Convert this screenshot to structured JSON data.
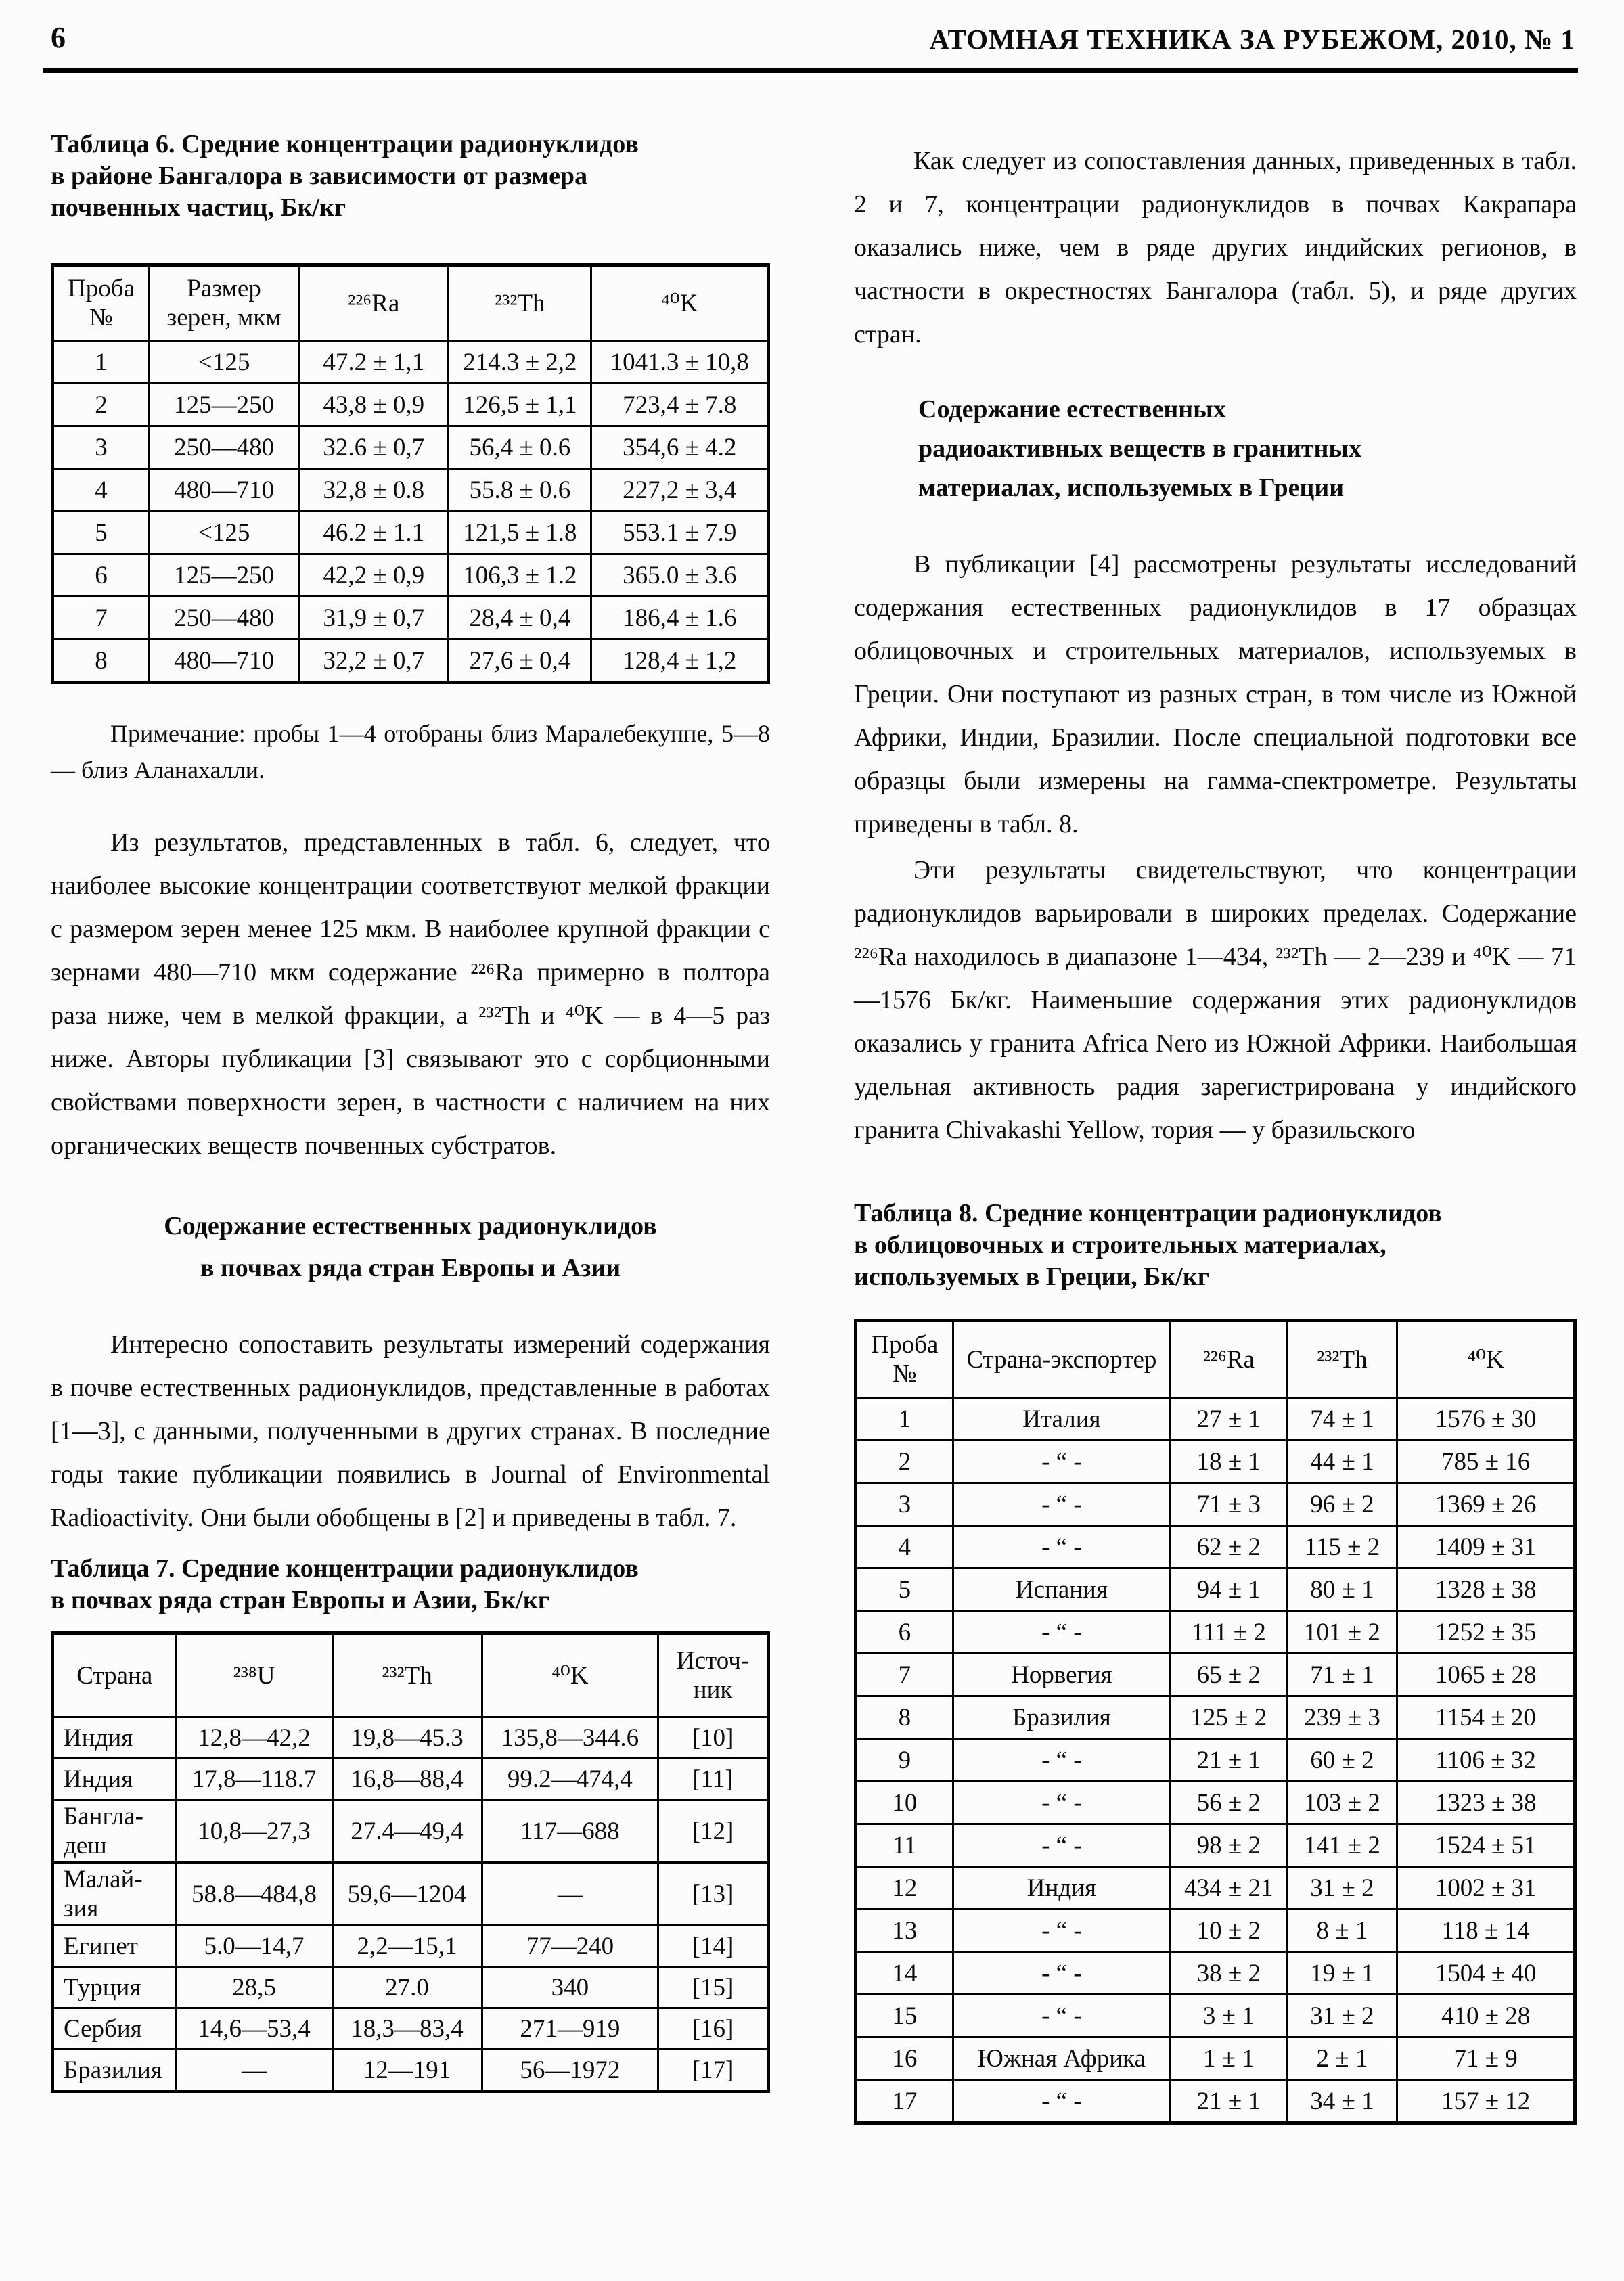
{
  "header": {
    "page_number": "6",
    "journal": "АТОМНАЯ ТЕХНИКА ЗА РУБЕЖОМ, 2010, № 1"
  },
  "left": {
    "table6_title": "Таблица 6. Средние концентрации радионуклидов\nв районе Бангалора в зависимости от размера\nпочвенных частиц, Бк/кг",
    "table6": {
      "headers": [
        "Проба\n№",
        "Размер\nзерен, мкм",
        "²²⁶Ra",
        "²³²Th",
        "⁴⁰K"
      ],
      "rows": [
        [
          "1",
          "<125",
          "47.2 ± 1,1",
          "214.3 ± 2,2",
          "1041.3 ± 10,8"
        ],
        [
          "2",
          "125—250",
          "43,8 ± 0,9",
          "126,5 ± 1,1",
          "723,4 ± 7.8"
        ],
        [
          "3",
          "250—480",
          "32.6 ± 0,7",
          "56,4 ± 0.6",
          "354,6 ± 4.2"
        ],
        [
          "4",
          "480—710",
          "32,8 ± 0.8",
          "55.8 ± 0.6",
          "227,2 ± 3,4"
        ],
        [
          "5",
          "<125",
          "46.2 ± 1.1",
          "121,5 ± 1.8",
          "553.1 ± 7.9"
        ],
        [
          "6",
          "125—250",
          "42,2 ± 0,9",
          "106,3 ± 1.2",
          "365.0 ± 3.6"
        ],
        [
          "7",
          "250—480",
          "31,9 ± 0,7",
          "28,4 ± 0,4",
          "186,4 ± 1.6"
        ],
        [
          "8",
          "480—710",
          "32,2 ± 0,7",
          "27,6 ± 0,4",
          "128,4 ± 1,2"
        ]
      ]
    },
    "table6_note": "Примечание: пробы 1—4 отобраны близ Маралебекуппе, 5—8 — близ Аланахалли.",
    "para1": "Из результатов, представленных в табл. 6, следует, что наиболее высокие концентрации соответствуют мелкой фракции с размером зерен менее 125 мкм. В наиболее крупной фракции с зернами 480—710 мкм содержание ²²⁶Ra примерно в полтора раза ниже, чем в мелкой фракции, а ²³²Th и ⁴⁰K — в 4—5 раз ниже. Авторы публикации [3] связывают это с сорбционными свойствами поверхности зерен, в частности с наличием на них органических веществ почвенных субстратов.",
    "heading1": "Содержание естественных радионуклидов\nв почвах ряда стран Европы и Азии",
    "para2": "Интересно сопоставить результаты измерений содержания в почве естественных радионуклидов, представленные в работах [1—3], с данными, полученными в других странах. В последние годы такие публикации появились в Journal of Environmental Radioactivity. Они были обобщены в [2] и приведены в табл. 7.",
    "table7_title": "Таблица 7. Средние концентрации радионуклидов\nв почвах ряда стран Европы и Азии, Бк/кг",
    "table7": {
      "headers": [
        "Страна",
        "²³⁸U",
        "²³²Th",
        "⁴⁰K",
        "Источ-\nник"
      ],
      "rows": [
        [
          "Индия",
          "12,8—42,2",
          "19,8—45.3",
          "135,8—344.6",
          "[10]"
        ],
        [
          "Индия",
          "17,8—118.7",
          "16,8—88,4",
          "99.2—474,4",
          "[11]"
        ],
        [
          "Бангла-\nдеш",
          "10,8—27,3",
          "27.4—49,4",
          "117—688",
          "[12]"
        ],
        [
          "Малай-\nзия",
          "58.8—484,8",
          "59,6—1204",
          "—",
          "[13]"
        ],
        [
          "Египет",
          "5.0—14,7",
          "2,2—15,1",
          "77—240",
          "[14]"
        ],
        [
          "Турция",
          "28,5",
          "27.0",
          "340",
          "[15]"
        ],
        [
          "Сербия",
          "14,6—53,4",
          "18,3—83,4",
          "271—919",
          "[16]"
        ],
        [
          "Бразилия",
          "—",
          "12—191",
          "56—1972",
          "[17]"
        ]
      ]
    }
  },
  "right": {
    "para1": "Как следует из сопоставления данных, приведенных в табл. 2 и 7, концентрации радионуклидов в почвах Какрапара оказались ниже, чем в ряде других индийских регионов, в частности в окрестностях Бангалора (табл. 5), и ряде других стран.",
    "heading1": "Содержание естественных\nрадиоактивных веществ в гранитных\nматериалах, используемых в Греции",
    "para2": "В публикации [4] рассмотрены результаты исследований содержания естественных радионуклидов в 17 образцах облицовочных и строительных материалов, используемых в Греции. Они поступают из разных стран, в том числе из Южной Африки, Индии, Бразилии. После специальной подготовки все образцы были измерены на гамма-спектрометре. Результаты приведены в табл. 8.",
    "para3": "Эти результаты свидетельствуют, что концентрации радионуклидов варьировали в широких пределах. Содержание ²²⁶Ra находилось в диапазоне 1—434, ²³²Th — 2—239 и ⁴⁰K — 71—1576 Бк/кг. Наименьшие содержания этих радионуклидов оказались у гранита Africa Nero из Южной Африки. Наибольшая удельная активность радия зарегистрирована у индийского гранита Chivakashi Yellow, тория — у бразильского",
    "table8_title": "Таблица 8. Средние концентрации радионуклидов\nв облицовочных и строительных материалах,\nиспользуемых в Греции, Бк/кг",
    "table8": {
      "headers": [
        "Проба\n№",
        "Страна-экспортер",
        "²²⁶Ra",
        "²³²Th",
        "⁴⁰K"
      ],
      "rows": [
        [
          "1",
          "Италия",
          "27 ± 1",
          "74 ± 1",
          "1576 ± 30"
        ],
        [
          "2",
          "- “ -",
          "18 ± 1",
          "44 ± 1",
          "785 ± 16"
        ],
        [
          "3",
          "- “ -",
          "71 ± 3",
          "96 ± 2",
          "1369 ± 26"
        ],
        [
          "4",
          "- “ -",
          "62 ± 2",
          "115 ± 2",
          "1409 ± 31"
        ],
        [
          "5",
          "Испания",
          "94 ± 1",
          "80 ± 1",
          "1328 ± 38"
        ],
        [
          "6",
          "- “ -",
          "111 ± 2",
          "101 ± 2",
          "1252 ± 35"
        ],
        [
          "7",
          "Норвегия",
          "65 ± 2",
          "71 ± 1",
          "1065 ± 28"
        ],
        [
          "8",
          "Бразилия",
          "125 ± 2",
          "239 ± 3",
          "1154 ± 20"
        ],
        [
          "9",
          "- “ -",
          "21 ± 1",
          "60 ± 2",
          "1106 ± 32"
        ],
        [
          "10",
          "- “ -",
          "56 ± 2",
          "103 ± 2",
          "1323 ± 38"
        ],
        [
          "11",
          "- “ -",
          "98 ± 2",
          "141 ± 2",
          "1524 ± 51"
        ],
        [
          "12",
          "Индия",
          "434 ± 21",
          "31 ± 2",
          "1002 ± 31"
        ],
        [
          "13",
          "- “ -",
          "10 ± 2",
          "8 ± 1",
          "118 ± 14"
        ],
        [
          "14",
          "- “ -",
          "38 ± 2",
          "19 ± 1",
          "1504 ± 40"
        ],
        [
          "15",
          "- “ -",
          "3 ± 1",
          "31 ± 2",
          "410 ± 28"
        ],
        [
          "16",
          "Южная Африка",
          "1 ± 1",
          "2 ± 1",
          "71 ± 9"
        ],
        [
          "17",
          "- “ -",
          "21 ± 1",
          "34 ± 1",
          "157 ± 12"
        ]
      ]
    }
  }
}
